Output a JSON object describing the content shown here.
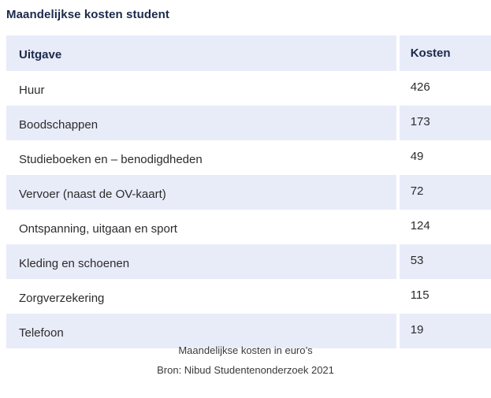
{
  "title": "Maandelijkse kosten student",
  "table": {
    "headers": [
      "Uitgave",
      "Kosten"
    ],
    "rows": [
      {
        "item": "Huur",
        "cost": "426"
      },
      {
        "item": "Boodschappen",
        "cost": "173"
      },
      {
        "item": "Studieboeken en – benodigdheden",
        "cost": "49"
      },
      {
        "item": "Vervoer (naast de OV-kaart)",
        "cost": "72"
      },
      {
        "item": "Ontspanning, uitgaan en sport",
        "cost": "124"
      },
      {
        "item": "Kleding en schoenen",
        "cost": "53"
      },
      {
        "item": "Zorgverzekering",
        "cost": "115"
      },
      {
        "item": "Telefoon",
        "cost": "19"
      }
    ]
  },
  "caption": "Maandelijkse kosten in euro’s",
  "source": "Bron: Nibud Studentenonderzoek 2021",
  "colors": {
    "header_background": "#e8ebf8",
    "title_text": "#1b2a4a"
  }
}
